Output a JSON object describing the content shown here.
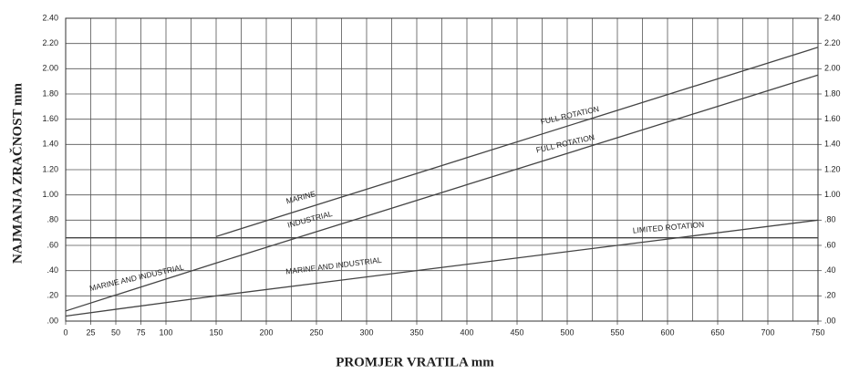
{
  "chart_data": {
    "type": "line",
    "ylabel": "NAJMANJA ZRAČNOST mm",
    "xlabel": "PROMJER VRATILA mm",
    "xlim": [
      0,
      750
    ],
    "xticks": [
      0,
      25,
      50,
      75,
      100,
      150,
      200,
      250,
      300,
      350,
      400,
      450,
      500,
      550,
      600,
      650,
      700,
      750
    ],
    "xgrid": [
      0,
      25,
      50,
      75,
      100,
      125,
      150,
      175,
      200,
      225,
      250,
      275,
      300,
      325,
      350,
      375,
      400,
      425,
      450,
      475,
      500,
      525,
      550,
      575,
      600,
      625,
      650,
      675,
      700,
      725,
      750
    ],
    "ylim": [
      0,
      2.4
    ],
    "yticks": [
      {
        "value": 0,
        "label": ".00"
      },
      {
        "value": 0.2,
        "label": ".20"
      },
      {
        "value": 0.4,
        "label": ".40"
      },
      {
        "value": 0.6,
        "label": ".60"
      },
      {
        "value": 0.8,
        "label": ".80"
      },
      {
        "value": 1.0,
        "label": "1.00"
      },
      {
        "value": 1.2,
        "label": "1.20"
      },
      {
        "value": 1.4,
        "label": "1.40"
      },
      {
        "value": 1.6,
        "label": "1.60"
      },
      {
        "value": 1.8,
        "label": "1.80"
      },
      {
        "value": 2.0,
        "label": "2.00"
      },
      {
        "value": 2.2,
        "label": "2.20"
      },
      {
        "value": 2.4,
        "label": "2.40"
      }
    ],
    "y2lim": [
      0,
      2.4
    ],
    "y2ticks": [
      {
        "value": 0,
        "label": ".00"
      },
      {
        "value": 0.2,
        "label": ".20"
      },
      {
        "value": 0.4,
        "label": ".40"
      },
      {
        "value": 0.6,
        "label": ".60"
      },
      {
        "value": 0.8,
        "label": ".80"
      },
      {
        "value": 1.0,
        "label": "1.00"
      },
      {
        "value": 1.2,
        "label": "1.20"
      },
      {
        "value": 1.4,
        "label": "1.40"
      },
      {
        "value": 1.6,
        "label": "1.60"
      },
      {
        "value": 1.8,
        "label": "1.80"
      },
      {
        "value": 2.0,
        "label": "2.00"
      },
      {
        "value": 2.2,
        "label": "2.20"
      },
      {
        "value": 2.4,
        "label": "2.40"
      }
    ],
    "grid": true,
    "series": [
      {
        "color": "#444444",
        "x": [
          150,
          750
        ],
        "values": [
          0.67,
          2.17
        ]
      },
      {
        "color": "#444444",
        "x": [
          0,
          150,
          750
        ],
        "values": [
          0.08,
          0.46,
          1.95
        ]
      },
      {
        "color": "#444444",
        "x": [
          0,
          150,
          350,
          600,
          750
        ],
        "values": [
          0.04,
          0.2,
          0.4,
          0.65,
          0.8
        ]
      },
      {
        "color": "#444444",
        "x": [
          0,
          750
        ],
        "values": [
          0.66,
          0.66
        ]
      }
    ],
    "annotations": [
      "MARINE AND INDUSTRIAL",
      "MARINE",
      "INDUSTRIAL",
      "FULL ROTATION",
      "FULL ROTATION",
      "MARINE AND INDUSTRIAL",
      "LIMITED ROTATION"
    ]
  }
}
